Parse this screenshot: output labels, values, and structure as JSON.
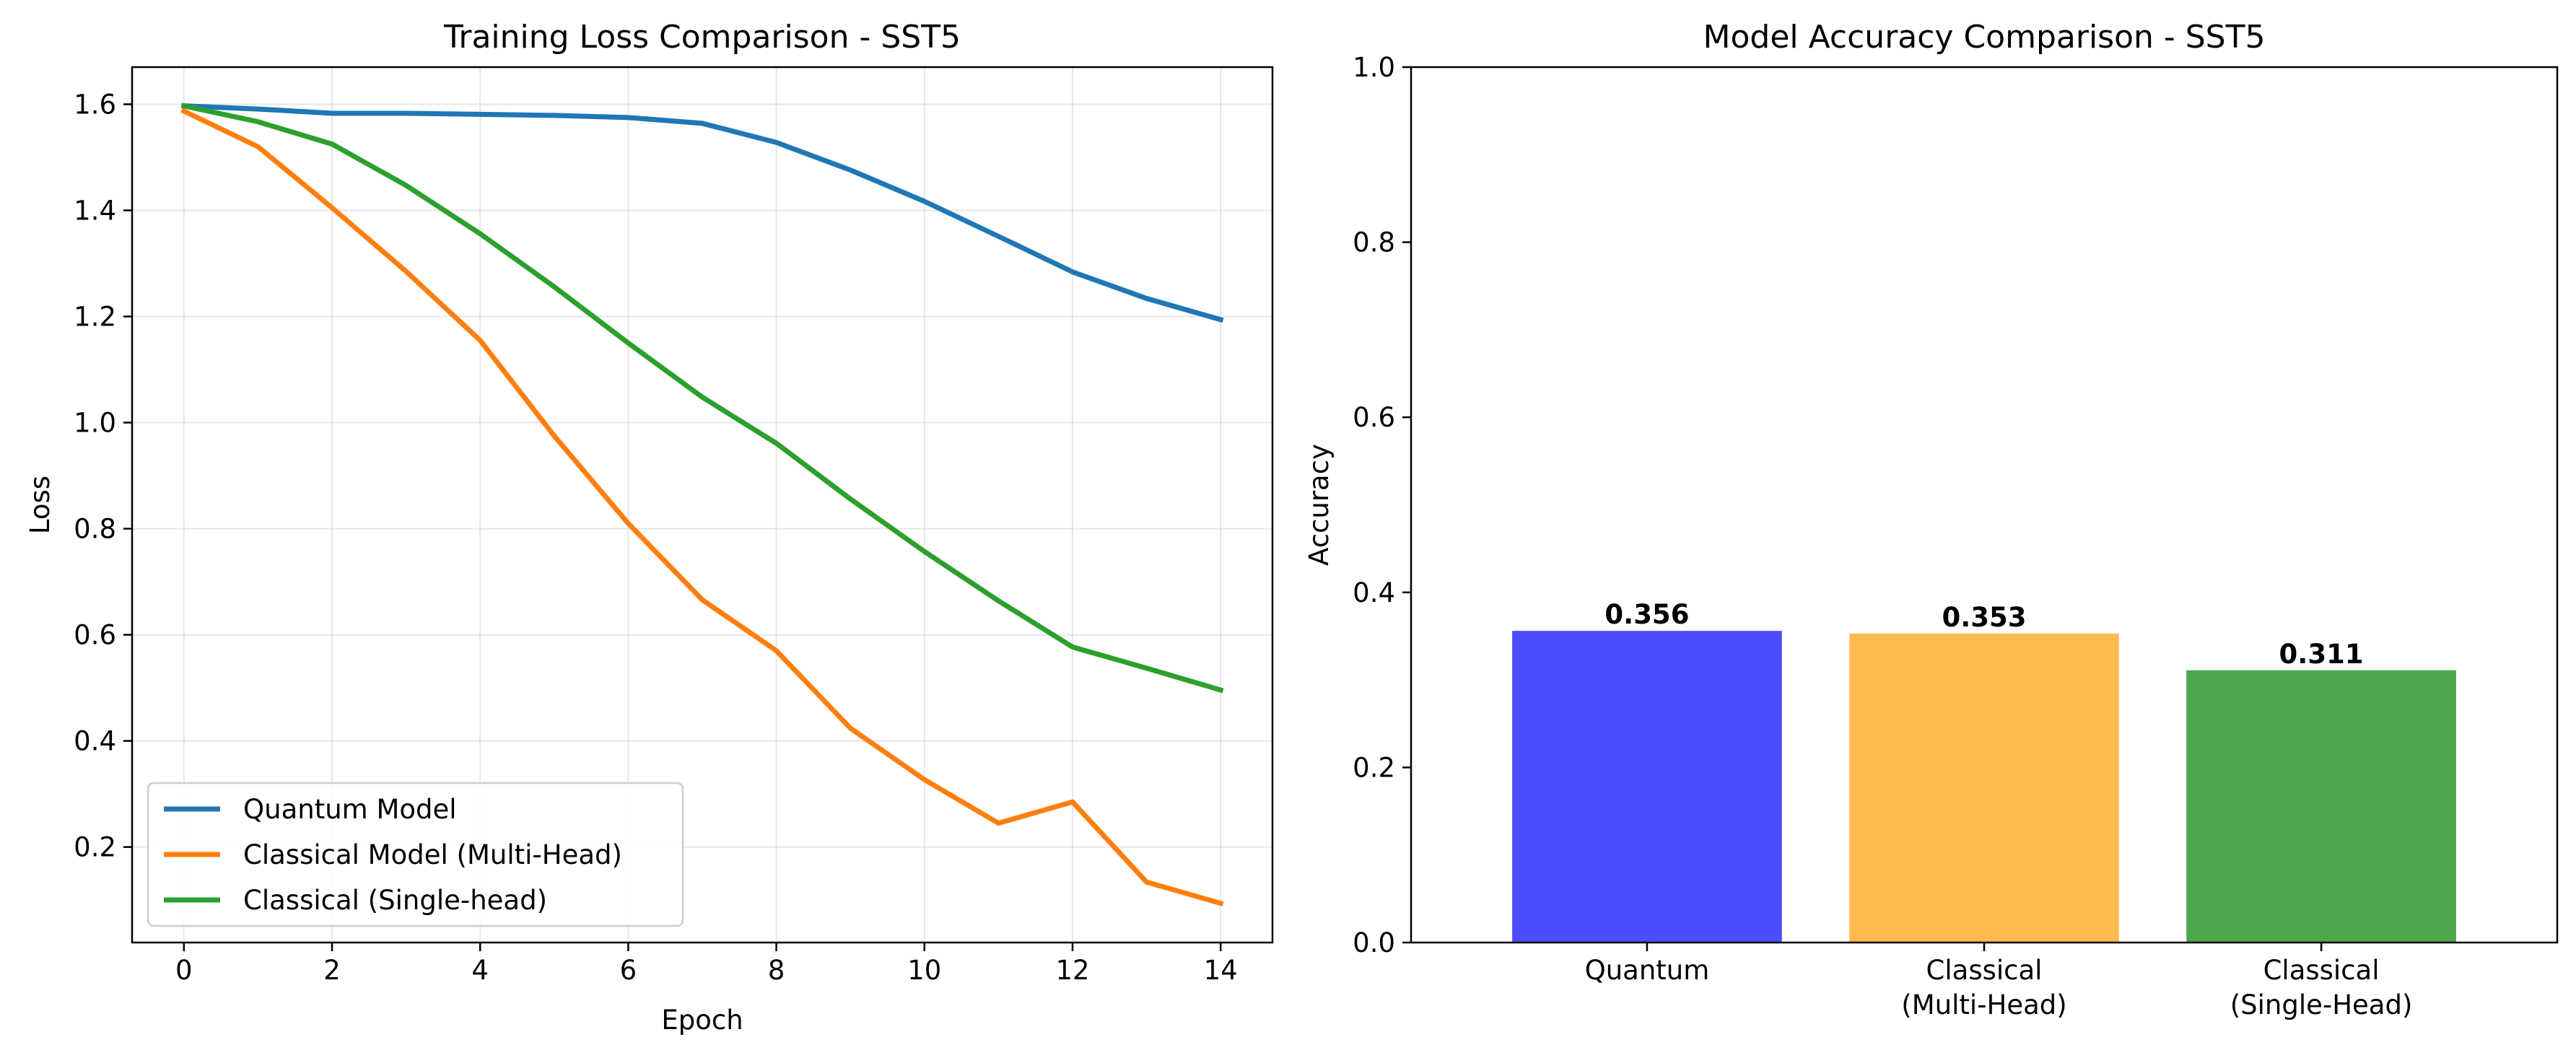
{
  "chart_data": [
    {
      "type": "line",
      "title": "Training Loss Comparison - SST5",
      "xlabel": "Epoch",
      "ylabel": "Loss",
      "xlim": [
        -0.7,
        14.7
      ],
      "ylim": [
        0.02,
        1.67
      ],
      "xticks": [
        0,
        2,
        4,
        6,
        8,
        10,
        12,
        14
      ],
      "xtick_labels": [
        "0",
        "2",
        "4",
        "6",
        "8",
        "10",
        "12",
        "14"
      ],
      "yticks": [
        0.2,
        0.4,
        0.6,
        0.8,
        1.0,
        1.2,
        1.4,
        1.6
      ],
      "ytick_labels": [
        "0.2",
        "0.4",
        "0.6",
        "0.8",
        "1.0",
        "1.2",
        "1.4",
        "1.6"
      ],
      "grid": true,
      "legend_position": "lower-left",
      "x": [
        0,
        1,
        2,
        3,
        4,
        5,
        6,
        7,
        8,
        9,
        10,
        11,
        12,
        13,
        14
      ],
      "series": [
        {
          "name": "Quantum Model",
          "color": "#1f77b4",
          "values": [
            1.597,
            1.591,
            1.583,
            1.583,
            1.581,
            1.579,
            1.575,
            1.564,
            1.528,
            1.476,
            1.417,
            1.351,
            1.284,
            1.234,
            1.194
          ]
        },
        {
          "name": "Classical Model (Multi-Head)",
          "color": "#ff7f0e",
          "values": [
            1.587,
            1.52,
            1.405,
            1.285,
            1.155,
            0.975,
            0.81,
            0.666,
            0.57,
            0.424,
            0.327,
            0.245,
            0.285,
            0.134,
            0.094
          ]
        },
        {
          "name": "Classical (Single-head)",
          "color": "#2ca02c",
          "values": [
            1.597,
            1.567,
            1.525,
            1.447,
            1.356,
            1.256,
            1.15,
            1.048,
            0.961,
            0.856,
            0.757,
            0.664,
            0.577,
            0.537,
            0.496
          ]
        }
      ]
    },
    {
      "type": "bar",
      "title": "Model Accuracy Comparison - SST5",
      "xlabel": "",
      "ylabel": "Accuracy",
      "ylim": [
        0,
        1.0
      ],
      "yticks": [
        0.0,
        0.2,
        0.4,
        0.6,
        0.8,
        1.0
      ],
      "ytick_labels": [
        "0.0",
        "0.2",
        "0.4",
        "0.6",
        "0.8",
        "1.0"
      ],
      "grid": false,
      "categories": [
        [
          "Quantum"
        ],
        [
          "Classical",
          "(Multi-Head)"
        ],
        [
          "Classical",
          "(Single-Head)"
        ]
      ],
      "values": [
        0.356,
        0.353,
        0.311
      ],
      "value_labels": [
        "0.356",
        "0.353",
        "0.311"
      ],
      "colors": [
        "#4d4dff",
        "#fdbb4d",
        "#4ca64c"
      ]
    }
  ]
}
